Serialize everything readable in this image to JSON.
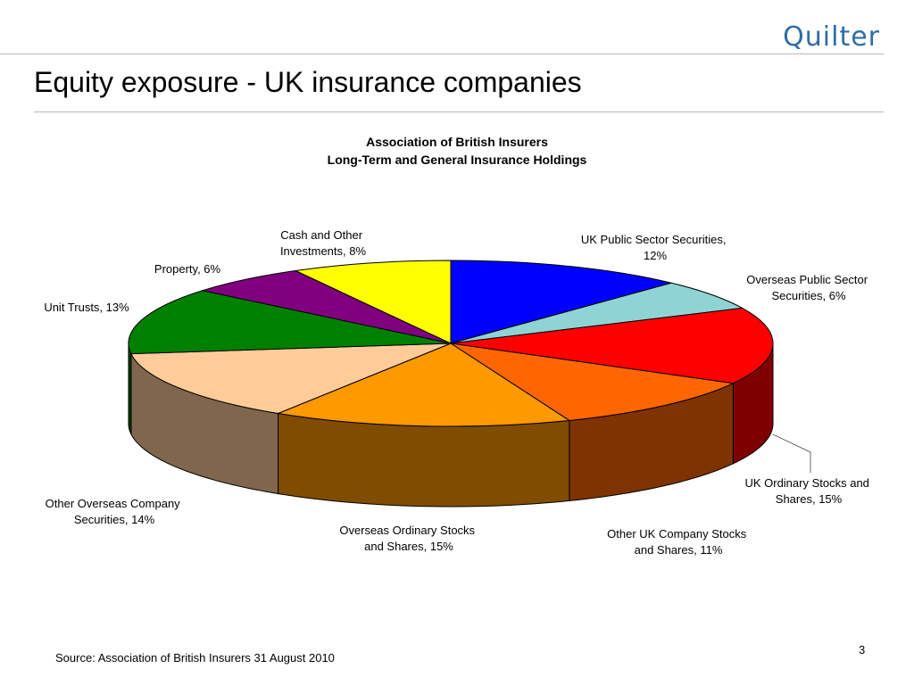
{
  "header": {
    "logo_text": "Quilter"
  },
  "slide": {
    "title": "Equity exposure - UK insurance companies"
  },
  "chart_data": {
    "type": "pie",
    "title": "Association of British Insurers",
    "subtitle": "Long-Term and General Insurance Holdings",
    "three_d": true,
    "slices": [
      {
        "label": "UK Public Sector Securities, 12%",
        "value": 12,
        "color": "#0000ff",
        "side": "#00007f"
      },
      {
        "label": "Overseas Public Sector Securities, 6%",
        "value": 6,
        "color": "#8fd4d4",
        "side": "#4a8a8a"
      },
      {
        "label": "UK Ordinary Stocks and Shares, 15%",
        "value": 15,
        "color": "#ff0000",
        "side": "#7f0000"
      },
      {
        "label": "Other UK Company Stocks and Shares, 11%",
        "value": 11,
        "color": "#ff6600",
        "side": "#7f3300"
      },
      {
        "label": "Overseas Ordinary Stocks and Shares, 15%",
        "value": 15,
        "color": "#ff9900",
        "side": "#7f4c00"
      },
      {
        "label": "Other Overseas Company Securities, 14%",
        "value": 14,
        "color": "#ffcc99",
        "side": "#7f664c"
      },
      {
        "label": "Unit Trusts, 13%",
        "value": 13,
        "color": "#008000",
        "side": "#004000"
      },
      {
        "label": "Property, 6%",
        "value": 6,
        "color": "#800080",
        "side": "#400040"
      },
      {
        "label": "Cash and Other Investments, 8%",
        "value": 8,
        "color": "#ffff00",
        "side": "#7f7f00"
      }
    ]
  },
  "labels": {
    "uk_public": [
      "UK Public Sector Securities,",
      "12%"
    ],
    "overseas_public": [
      "Overseas Public Sector",
      "Securities, 6%"
    ],
    "uk_ordinary": [
      "UK Ordinary Stocks and",
      "Shares, 15%"
    ],
    "other_uk": [
      "Other UK Company Stocks",
      "and Shares, 11%"
    ],
    "overseas_ordinary": [
      "Overseas Ordinary Stocks",
      "and Shares, 15%"
    ],
    "other_overseas": [
      "Other Overseas Company",
      "Securities, 14%"
    ],
    "unit_trusts": [
      "Unit Trusts, 13%"
    ],
    "property": [
      "Property, 6%"
    ],
    "cash": [
      "Cash and Other",
      "Investments, 8%"
    ]
  },
  "footer": {
    "source": "Source: Association of British Insurers 31 August 2010",
    "page_number": "3"
  }
}
